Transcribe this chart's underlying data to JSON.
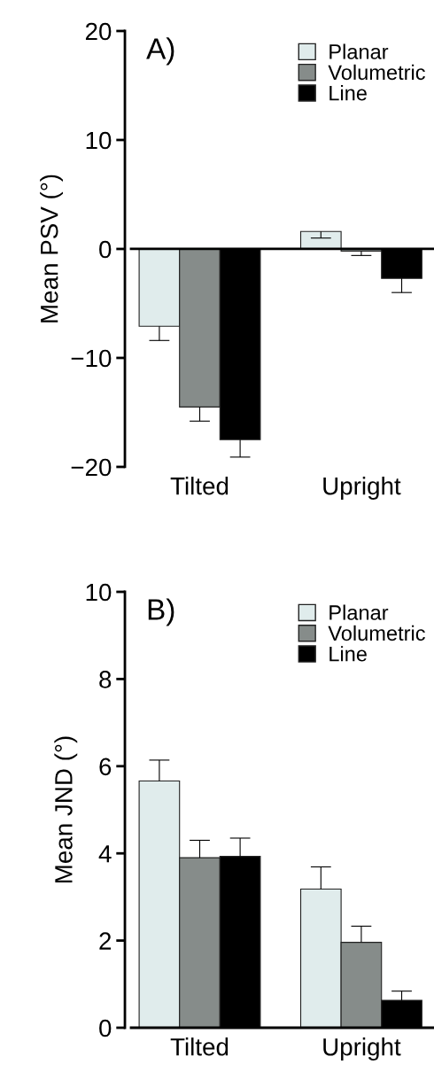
{
  "chart_data": [
    {
      "type": "bar",
      "title": "A)",
      "ylabel": "Mean PSV (°)",
      "categories": [
        "Tilted",
        "Upright"
      ],
      "ylim": [
        -20,
        20
      ],
      "yticks": [
        {
          "value": -20,
          "label": "−20"
        },
        {
          "value": -10,
          "label": "−10"
        },
        0,
        10,
        20
      ],
      "legend": "top right",
      "grid": false,
      "ref_lines": [
        {
          "axis": "y",
          "value": 0,
          "color": "#000000"
        }
      ],
      "series": [
        {
          "name": "Planar",
          "color": "#e0ecec",
          "values": [
            -7.1,
            1.6
          ],
          "errors": [
            [
              -8.4,
              -7.1
            ],
            [
              1.0,
              1.6
            ]
          ]
        },
        {
          "name": "Volumetric",
          "color": "#868c8a",
          "values": [
            -14.5,
            -0.2
          ],
          "errors": [
            [
              -15.8,
              -14.5
            ],
            [
              -0.6,
              -0.2
            ]
          ]
        },
        {
          "name": "Line",
          "color": "#000000",
          "values": [
            -17.5,
            -2.7
          ],
          "errors": [
            [
              -19.1,
              -17.5
            ],
            [
              -4.0,
              -2.7
            ]
          ]
        }
      ]
    },
    {
      "type": "bar",
      "title": "B)",
      "ylabel": "Mean JND (°)",
      "categories": [
        "Tilted",
        "Upright"
      ],
      "ylim": [
        0,
        10
      ],
      "yticks": [
        0,
        2,
        4,
        6,
        8,
        10
      ],
      "legend": "top right",
      "grid": false,
      "series": [
        {
          "name": "Planar",
          "color": "#e0ecec",
          "values": [
            5.66,
            3.18
          ],
          "errors": [
            [
              5.66,
              6.14
            ],
            [
              3.18,
              3.69
            ]
          ]
        },
        {
          "name": "Volumetric",
          "color": "#868c8a",
          "values": [
            3.9,
            1.96
          ],
          "errors": [
            [
              3.9,
              4.3
            ],
            [
              1.96,
              2.33
            ]
          ]
        },
        {
          "name": "Line",
          "color": "#000000",
          "values": [
            3.93,
            0.63
          ],
          "errors": [
            [
              3.93,
              4.35
            ],
            [
              0.63,
              0.84
            ]
          ]
        }
      ]
    }
  ]
}
